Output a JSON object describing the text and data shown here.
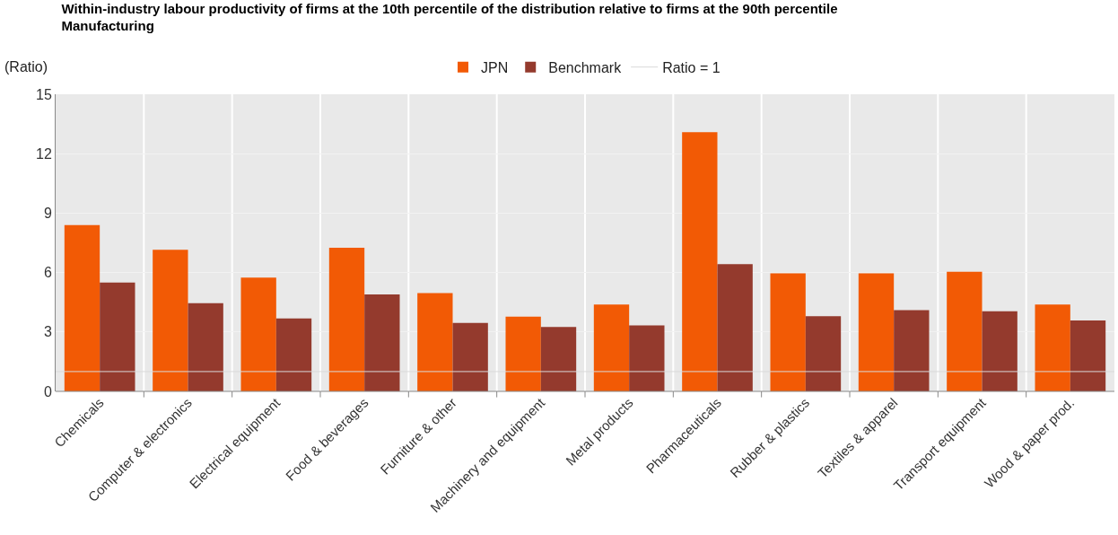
{
  "chart_data": {
    "type": "bar",
    "title": "Within-industry labour productivity of firms at the 10th percentile of the distribution relative to firms at the 90th percentile",
    "subtitle": "Manufacturing",
    "ylabel": "(Ratio)",
    "categories": [
      "Chemicals",
      "Computer & electronics",
      "Electrical equipment",
      "Food & beverages",
      "Furniture & other",
      "Machinery and equipment",
      "Metal products",
      "Pharmaceuticals",
      "Rubber & plastics",
      "Textiles & apparel",
      "Transport equipment",
      "Wood & paper prod."
    ],
    "series": [
      {
        "name": "JPN",
        "color": "#f25a05",
        "values": [
          8.4,
          7.15,
          5.74,
          7.25,
          4.96,
          3.77,
          4.38,
          13.09,
          5.96,
          5.96,
          6.04,
          4.38
        ]
      },
      {
        "name": "Benchmark",
        "color": "#943a2d",
        "values": [
          5.5,
          4.45,
          3.68,
          4.89,
          3.45,
          3.25,
          3.33,
          6.42,
          3.79,
          4.1,
          4.04,
          3.58
        ]
      }
    ],
    "ref_lines": [
      {
        "axis": "y",
        "value": 1,
        "label": "Ratio = 1",
        "color": "#d9d9d9"
      }
    ],
    "ylim": [
      0,
      15
    ],
    "yticks": [
      0,
      3,
      6,
      9,
      12,
      15
    ],
    "grid": true,
    "legend": "top"
  }
}
